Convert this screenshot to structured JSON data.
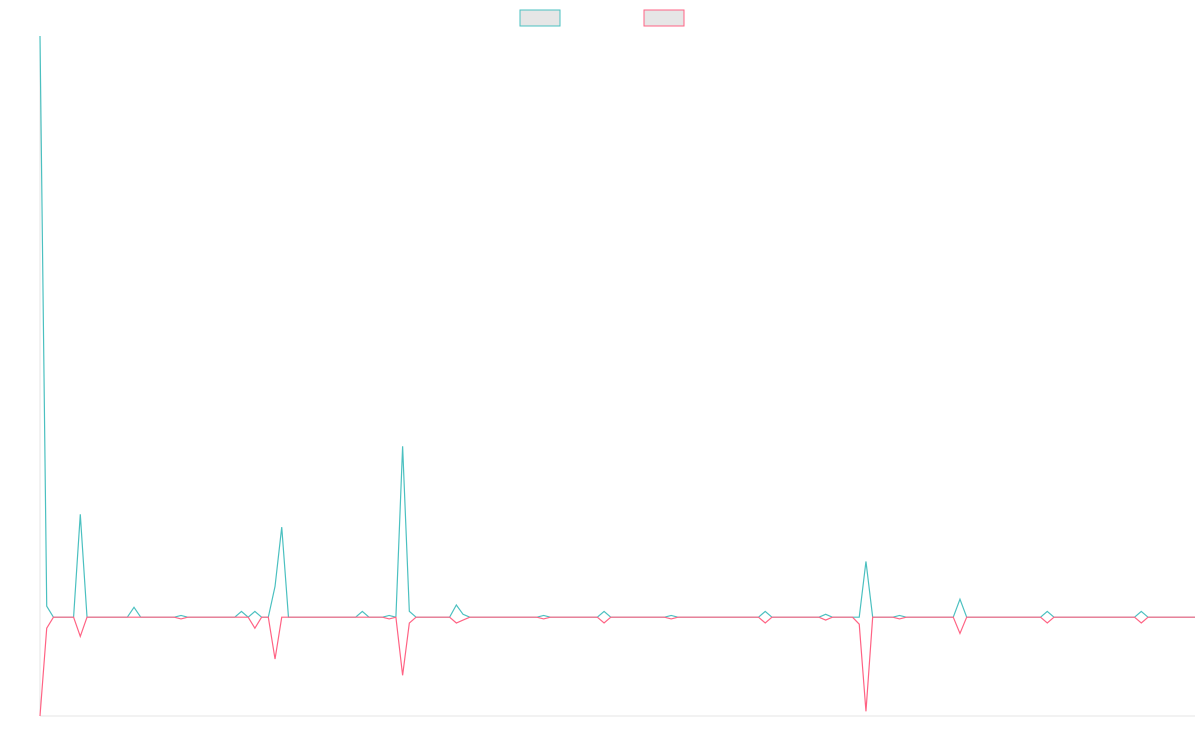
{
  "chart_data": {
    "type": "line",
    "legend": "top",
    "xlim": [
      0,
      172
    ],
    "ylim": [
      -17,
      100
    ],
    "x": [
      0,
      1,
      2,
      5,
      6,
      7,
      13,
      14,
      15,
      20,
      21,
      22,
      29,
      30,
      31,
      32,
      33,
      34,
      35,
      36,
      37,
      47,
      48,
      49,
      51,
      52,
      53,
      54,
      55,
      56,
      61,
      62,
      63,
      64,
      74,
      75,
      76,
      83,
      84,
      85,
      93,
      94,
      95,
      107,
      108,
      109,
      116,
      117,
      118,
      121,
      122,
      123,
      124,
      127,
      128,
      129,
      136,
      137,
      138,
      149,
      150,
      151,
      163,
      164,
      165,
      172
    ],
    "series": [
      {
        "color": "#4bc0c0",
        "values": [
          100,
          1.9,
          0,
          0,
          17.7,
          0,
          0,
          1.7,
          0,
          0,
          0.3,
          0,
          0,
          1,
          0,
          1,
          0,
          0,
          5.3,
          15.5,
          0,
          0,
          1,
          0,
          0,
          0.3,
          0,
          29.4,
          1,
          0,
          0,
          2.1,
          0.5,
          0,
          0,
          0.3,
          0,
          0,
          1,
          0,
          0,
          0.3,
          0,
          0,
          1,
          0,
          0,
          0.5,
          0,
          0,
          0,
          9.6,
          0,
          0,
          0.3,
          0,
          0,
          3.1,
          0,
          0,
          1,
          0,
          0,
          1,
          0,
          0
        ]
      },
      {
        "color": "#ff6384",
        "values": [
          -17,
          -1.9,
          0,
          0,
          -3.3,
          0,
          0,
          0,
          0,
          0,
          -0.3,
          0,
          0,
          0,
          0,
          -1.9,
          0,
          0,
          -7.2,
          0,
          0,
          0,
          0,
          0,
          0,
          -0.3,
          0,
          -10,
          -1,
          0,
          0,
          -1,
          -0.5,
          0,
          0,
          -0.3,
          0,
          0,
          -1,
          0,
          0,
          -0.3,
          0,
          0,
          -1,
          0,
          0,
          -0.5,
          0,
          0,
          -1.2,
          -16.2,
          0,
          0,
          -0.3,
          0,
          0,
          -2.8,
          0,
          0,
          -1,
          0,
          0,
          -1,
          0,
          0
        ]
      }
    ]
  }
}
